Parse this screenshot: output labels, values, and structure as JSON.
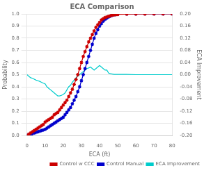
{
  "chart_data": {
    "type": "line",
    "title": "ECA Comparison",
    "xlabel": "ECA (ft)",
    "ylabel": "Probability",
    "y2label": "ECA Improvement",
    "x": [
      0,
      1,
      2,
      3,
      4,
      5,
      6,
      7,
      8,
      9,
      10,
      11,
      12,
      13,
      14,
      15,
      16,
      17,
      18,
      19,
      20,
      21,
      22,
      23,
      24,
      25,
      26,
      27,
      28,
      29,
      30,
      31,
      32,
      33,
      34,
      35,
      36,
      37,
      38,
      39,
      40,
      41,
      42,
      43,
      44,
      45,
      46,
      47,
      48,
      49,
      50,
      55,
      60,
      65,
      70,
      75,
      80
    ],
    "series": [
      {
        "name": "Control w CCC",
        "color": "#cc0000",
        "marker": "star",
        "values": [
          0.0,
          0.01,
          0.02,
          0.03,
          0.04,
          0.05,
          0.06,
          0.07,
          0.08,
          0.09,
          0.11,
          0.12,
          0.13,
          0.14,
          0.15,
          0.17,
          0.18,
          0.19,
          0.21,
          0.23,
          0.25,
          0.27,
          0.29,
          0.32,
          0.35,
          0.38,
          0.42,
          0.46,
          0.5,
          0.55,
          0.6,
          0.65,
          0.69,
          0.73,
          0.77,
          0.8,
          0.83,
          0.86,
          0.89,
          0.91,
          0.93,
          0.95,
          0.96,
          0.97,
          0.975,
          0.98,
          0.985,
          0.99,
          0.992,
          0.994,
          0.996,
          0.998,
          0.999,
          0.999,
          1.0,
          1.0,
          1.0
        ]
      },
      {
        "name": "Control Manual",
        "color": "#0000cc",
        "marker": "star",
        "values": [
          0.0,
          0.005,
          0.01,
          0.015,
          0.02,
          0.025,
          0.03,
          0.035,
          0.04,
          0.045,
          0.05,
          0.06,
          0.07,
          0.08,
          0.09,
          0.1,
          0.11,
          0.12,
          0.13,
          0.14,
          0.15,
          0.17,
          0.19,
          0.21,
          0.23,
          0.26,
          0.29,
          0.32,
          0.36,
          0.4,
          0.45,
          0.5,
          0.55,
          0.6,
          0.65,
          0.7,
          0.75,
          0.8,
          0.84,
          0.87,
          0.9,
          0.92,
          0.94,
          0.955,
          0.965,
          0.975,
          0.982,
          0.988,
          0.992,
          0.995,
          0.997,
          0.999,
          0.999,
          1.0,
          1.0,
          1.0,
          1.0
        ]
      },
      {
        "name": "ECA Improvement",
        "color": "#00cccc",
        "marker": "none",
        "axis": "y2",
        "values": [
          0.0,
          -0.005,
          -0.01,
          -0.012,
          -0.015,
          -0.018,
          -0.02,
          -0.022,
          -0.025,
          -0.028,
          -0.03,
          -0.04,
          -0.045,
          -0.05,
          -0.055,
          -0.06,
          -0.065,
          -0.07,
          -0.07,
          -0.068,
          -0.065,
          -0.06,
          -0.05,
          -0.04,
          -0.035,
          -0.025,
          -0.018,
          -0.01,
          -0.005,
          0.0,
          0.005,
          0.01,
          0.015,
          0.02,
          0.022,
          0.025,
          0.02,
          0.015,
          0.02,
          0.025,
          0.03,
          0.025,
          0.02,
          0.015,
          0.015,
          0.005,
          0.003,
          0.002,
          0.001,
          0.001,
          0.001,
          0.001,
          0.0,
          0.0,
          0.0,
          0.0,
          0.0
        ]
      }
    ],
    "xlim": [
      0,
      80
    ],
    "xticks": [
      0,
      10,
      20,
      30,
      40,
      50,
      60,
      70,
      80
    ],
    "ylim": [
      0.0,
      1.0
    ],
    "yticks": [
      {
        "value": 0.0,
        "label": "0.0"
      },
      0.1,
      0.2,
      0.3,
      0.4,
      0.5,
      0.6,
      0.7,
      0.8,
      0.9,
      {
        "value": 1.0,
        "label": "1.0"
      }
    ],
    "y2lim": [
      -0.2,
      0.2
    ],
    "y2ticks": [
      {
        "value": -0.2,
        "label": "-0.20"
      },
      {
        "value": -0.16,
        "label": "-0.16"
      },
      {
        "value": -0.12,
        "label": "-0.12"
      },
      {
        "value": -0.08,
        "label": "-0.08"
      },
      {
        "value": -0.04,
        "label": "-0.04"
      },
      {
        "value": 0.0,
        "label": "0.00"
      },
      {
        "value": 0.04,
        "label": "0.04"
      },
      {
        "value": 0.08,
        "label": "0.08"
      },
      {
        "value": 0.12,
        "label": "0.12"
      },
      {
        "value": 0.16,
        "label": "0.16"
      },
      {
        "value": 0.2,
        "label": "0.20"
      }
    ],
    "grid": true,
    "legend": "lower right"
  }
}
